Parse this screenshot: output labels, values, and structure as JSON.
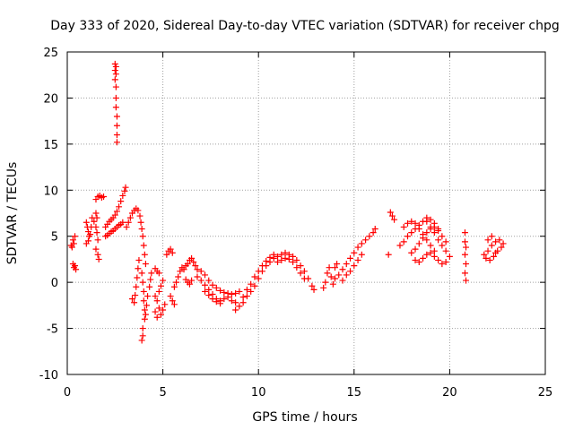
{
  "chart_data": {
    "type": "scatter",
    "title": "Day 333 of 2020, Sidereal Day-to-day VTEC variation (SDTVAR) for receiver chpg",
    "xlabel": "GPS time / hours",
    "ylabel": "SDTVAR / TECUs",
    "xlim": [
      0,
      25
    ],
    "ylim": [
      -10,
      25
    ],
    "xticks": [
      0,
      5,
      10,
      15,
      20,
      25
    ],
    "yticks": [
      -10,
      -5,
      0,
      5,
      10,
      15,
      20,
      25
    ],
    "grid": true,
    "marker": "+",
    "color": "#ff0000",
    "series": [
      {
        "name": "SDTVAR",
        "points": [
          [
            0.2,
            4.0
          ],
          [
            0.25,
            3.8
          ],
          [
            0.3,
            4.6
          ],
          [
            0.35,
            4.2
          ],
          [
            0.4,
            5.0
          ],
          [
            0.3,
            2.0
          ],
          [
            0.35,
            1.6
          ],
          [
            0.4,
            1.8
          ],
          [
            0.45,
            1.4
          ],
          [
            1.0,
            6.5
          ],
          [
            1.05,
            6.0
          ],
          [
            1.1,
            5.5
          ],
          [
            1.15,
            5.0
          ],
          [
            1.0,
            4.2
          ],
          [
            1.1,
            4.5
          ],
          [
            1.2,
            5.2
          ],
          [
            1.25,
            6.0
          ],
          [
            1.3,
            7.0
          ],
          [
            1.4,
            6.6
          ],
          [
            1.5,
            6.0
          ],
          [
            1.55,
            5.4
          ],
          [
            1.6,
            4.6
          ],
          [
            1.5,
            3.6
          ],
          [
            1.6,
            3.0
          ],
          [
            1.65,
            2.5
          ],
          [
            1.5,
            7.5
          ],
          [
            1.55,
            7.0
          ],
          [
            1.5,
            9.0
          ],
          [
            1.6,
            9.3
          ],
          [
            1.7,
            9.4
          ],
          [
            1.8,
            9.2
          ],
          [
            1.9,
            9.3
          ],
          [
            2.0,
            5.0
          ],
          [
            2.1,
            5.1
          ],
          [
            2.2,
            5.3
          ],
          [
            2.3,
            5.5
          ],
          [
            2.4,
            5.6
          ],
          [
            2.5,
            5.8
          ],
          [
            2.6,
            6.0
          ],
          [
            2.7,
            6.2
          ],
          [
            2.8,
            6.3
          ],
          [
            2.9,
            6.5
          ],
          [
            2.0,
            6.0
          ],
          [
            2.1,
            6.3
          ],
          [
            2.2,
            6.6
          ],
          [
            2.3,
            6.8
          ],
          [
            2.4,
            7.0
          ],
          [
            2.5,
            7.3
          ],
          [
            2.6,
            7.7
          ],
          [
            2.7,
            8.2
          ],
          [
            2.8,
            8.8
          ],
          [
            2.9,
            9.4
          ],
          [
            3.0,
            9.9
          ],
          [
            3.05,
            10.3
          ],
          [
            2.5,
            23.7
          ],
          [
            2.55,
            23.4
          ],
          [
            2.5,
            23.0
          ],
          [
            2.55,
            22.6
          ],
          [
            2.5,
            22.0
          ],
          [
            2.55,
            21.2
          ],
          [
            2.55,
            20.0
          ],
          [
            2.55,
            19.0
          ],
          [
            2.6,
            18.0
          ],
          [
            2.6,
            17.0
          ],
          [
            2.6,
            16.0
          ],
          [
            2.6,
            15.2
          ],
          [
            3.1,
            6.0
          ],
          [
            3.2,
            6.5
          ],
          [
            3.3,
            7.0
          ],
          [
            3.4,
            7.5
          ],
          [
            3.5,
            7.8
          ],
          [
            3.6,
            8.0
          ],
          [
            3.7,
            7.8
          ],
          [
            3.8,
            7.2
          ],
          [
            3.85,
            6.5
          ],
          [
            3.9,
            5.8
          ],
          [
            3.95,
            5.0
          ],
          [
            4.0,
            4.0
          ],
          [
            4.05,
            3.0
          ],
          [
            4.1,
            2.0
          ],
          [
            3.4,
            -1.8
          ],
          [
            3.5,
            -2.2
          ],
          [
            3.55,
            -1.4
          ],
          [
            3.6,
            -0.5
          ],
          [
            3.65,
            0.5
          ],
          [
            3.7,
            1.5
          ],
          [
            3.75,
            2.4
          ],
          [
            3.9,
            1.0
          ],
          [
            3.95,
            0.0
          ],
          [
            4.0,
            -1.0
          ],
          [
            4.0,
            -2.0
          ],
          [
            4.05,
            -3.0
          ],
          [
            4.05,
            -4.0
          ],
          [
            3.95,
            -5.0
          ],
          [
            3.95,
            -5.8
          ],
          [
            3.9,
            -6.3
          ],
          [
            4.1,
            -3.5
          ],
          [
            4.15,
            -2.5
          ],
          [
            4.2,
            -1.5
          ],
          [
            4.3,
            -0.5
          ],
          [
            4.35,
            0.3
          ],
          [
            4.4,
            1.0
          ],
          [
            4.6,
            -1.5
          ],
          [
            4.7,
            -2.0
          ],
          [
            4.8,
            -2.8
          ],
          [
            4.9,
            -3.5
          ],
          [
            4.6,
            -3.2
          ],
          [
            4.7,
            -3.8
          ],
          [
            5.0,
            -3.0
          ],
          [
            5.1,
            -2.4
          ],
          [
            4.8,
            -1.0
          ],
          [
            4.9,
            -0.4
          ],
          [
            5.0,
            0.2
          ],
          [
            4.6,
            1.5
          ],
          [
            4.7,
            1.2
          ],
          [
            4.8,
            1.0
          ],
          [
            5.2,
            3.0
          ],
          [
            5.3,
            3.4
          ],
          [
            5.4,
            3.6
          ],
          [
            5.5,
            3.2
          ],
          [
            5.4,
            -1.5
          ],
          [
            5.5,
            -2.0
          ],
          [
            5.6,
            -2.4
          ],
          [
            5.6,
            -0.5
          ],
          [
            5.7,
            0.0
          ],
          [
            5.8,
            0.6
          ],
          [
            5.9,
            1.2
          ],
          [
            6.0,
            1.6
          ],
          [
            6.1,
            1.4
          ],
          [
            6.2,
            1.8
          ],
          [
            6.3,
            2.0
          ],
          [
            6.4,
            2.4
          ],
          [
            6.5,
            2.6
          ],
          [
            6.6,
            2.2
          ],
          [
            6.7,
            1.8
          ],
          [
            6.8,
            1.4
          ],
          [
            6.2,
            0.3
          ],
          [
            6.3,
            0.0
          ],
          [
            6.4,
            -0.2
          ],
          [
            6.5,
            0.2
          ],
          [
            6.8,
            0.6
          ],
          [
            7.0,
            0.2
          ],
          [
            7.2,
            -0.3
          ],
          [
            7.4,
            -0.8
          ],
          [
            7.6,
            -1.3
          ],
          [
            7.8,
            -1.8
          ],
          [
            8.0,
            -2.0
          ],
          [
            8.2,
            -1.8
          ],
          [
            8.4,
            -1.6
          ],
          [
            7.0,
            1.2
          ],
          [
            7.2,
            0.8
          ],
          [
            7.4,
            0.2
          ],
          [
            7.6,
            -0.3
          ],
          [
            7.8,
            -0.6
          ],
          [
            8.0,
            -0.9
          ],
          [
            8.2,
            -1.1
          ],
          [
            8.4,
            -1.2
          ],
          [
            8.6,
            -1.3
          ],
          [
            8.8,
            -1.2
          ],
          [
            9.0,
            -1.0
          ],
          [
            7.2,
            -1.0
          ],
          [
            7.4,
            -1.4
          ],
          [
            7.6,
            -1.8
          ],
          [
            7.8,
            -2.1
          ],
          [
            8.0,
            -2.3
          ],
          [
            8.6,
            -2.0
          ],
          [
            8.8,
            -2.2
          ],
          [
            8.8,
            -3.0
          ],
          [
            9.0,
            -2.6
          ],
          [
            9.2,
            -2.2
          ],
          [
            9.4,
            -1.5
          ],
          [
            9.6,
            -1.0
          ],
          [
            9.8,
            -0.4
          ],
          [
            10.0,
            0.4
          ],
          [
            10.2,
            1.2
          ],
          [
            10.4,
            1.8
          ],
          [
            10.6,
            2.2
          ],
          [
            10.8,
            2.6
          ],
          [
            9.2,
            -1.6
          ],
          [
            9.4,
            -0.8
          ],
          [
            9.6,
            -0.2
          ],
          [
            9.8,
            0.6
          ],
          [
            10.0,
            1.2
          ],
          [
            10.2,
            1.8
          ],
          [
            10.4,
            2.3
          ],
          [
            10.6,
            2.7
          ],
          [
            10.8,
            3.0
          ],
          [
            11.0,
            2.8
          ],
          [
            11.2,
            3.0
          ],
          [
            11.4,
            3.2
          ],
          [
            11.6,
            3.0
          ],
          [
            11.8,
            2.8
          ],
          [
            12.0,
            2.4
          ],
          [
            12.2,
            1.8
          ],
          [
            12.4,
            1.2
          ],
          [
            12.6,
            0.4
          ],
          [
            12.8,
            -0.4
          ],
          [
            12.9,
            -0.8
          ],
          [
            11.0,
            2.2
          ],
          [
            11.2,
            2.4
          ],
          [
            11.4,
            2.6
          ],
          [
            11.6,
            2.5
          ],
          [
            11.8,
            2.2
          ],
          [
            12.0,
            1.6
          ],
          [
            12.2,
            1.0
          ],
          [
            12.4,
            0.4
          ],
          [
            13.4,
            -0.6
          ],
          [
            13.5,
            0.0
          ],
          [
            13.6,
            1.0
          ],
          [
            13.7,
            1.6
          ],
          [
            13.8,
            0.6
          ],
          [
            13.9,
            -0.2
          ],
          [
            14.0,
            0.4
          ],
          [
            14.2,
            0.8
          ],
          [
            14.4,
            1.4
          ],
          [
            14.6,
            2.0
          ],
          [
            14.8,
            2.6
          ],
          [
            15.0,
            3.2
          ],
          [
            15.2,
            3.8
          ],
          [
            15.4,
            4.2
          ],
          [
            15.6,
            4.6
          ],
          [
            15.8,
            5.0
          ],
          [
            16.0,
            5.4
          ],
          [
            16.1,
            5.8
          ],
          [
            14.4,
            0.2
          ],
          [
            14.6,
            0.8
          ],
          [
            14.8,
            1.2
          ],
          [
            15.0,
            1.8
          ],
          [
            15.2,
            2.4
          ],
          [
            15.4,
            3.0
          ],
          [
            14.0,
            1.6
          ],
          [
            14.1,
            2.0
          ],
          [
            16.8,
            3.0
          ],
          [
            16.9,
            7.6
          ],
          [
            17.0,
            7.2
          ],
          [
            17.1,
            6.8
          ],
          [
            17.4,
            4.0
          ],
          [
            17.6,
            4.4
          ],
          [
            17.8,
            5.0
          ],
          [
            18.0,
            5.4
          ],
          [
            18.2,
            5.8
          ],
          [
            18.4,
            6.2
          ],
          [
            18.6,
            6.6
          ],
          [
            18.8,
            7.0
          ],
          [
            19.0,
            6.8
          ],
          [
            19.2,
            6.4
          ],
          [
            19.4,
            5.8
          ],
          [
            19.6,
            5.0
          ],
          [
            19.8,
            4.4
          ],
          [
            17.6,
            6.0
          ],
          [
            17.8,
            6.4
          ],
          [
            18.0,
            6.6
          ],
          [
            18.2,
            6.4
          ],
          [
            18.4,
            5.8
          ],
          [
            18.6,
            5.2
          ],
          [
            18.8,
            4.6
          ],
          [
            19.0,
            4.0
          ],
          [
            19.2,
            3.4
          ],
          [
            18.0,
            3.2
          ],
          [
            18.2,
            3.6
          ],
          [
            18.4,
            4.2
          ],
          [
            18.6,
            4.8
          ],
          [
            18.8,
            5.4
          ],
          [
            19.0,
            5.8
          ],
          [
            19.2,
            6.0
          ],
          [
            19.4,
            5.6
          ],
          [
            18.2,
            2.4
          ],
          [
            18.4,
            2.2
          ],
          [
            18.6,
            2.6
          ],
          [
            18.8,
            3.0
          ],
          [
            19.0,
            3.2
          ],
          [
            19.2,
            2.8
          ],
          [
            19.4,
            2.4
          ],
          [
            19.6,
            2.0
          ],
          [
            19.8,
            2.2
          ],
          [
            20.0,
            2.8
          ],
          [
            18.8,
            6.6
          ],
          [
            19.0,
            6.0
          ],
          [
            19.2,
            5.4
          ],
          [
            19.4,
            4.6
          ],
          [
            19.6,
            4.0
          ],
          [
            19.8,
            3.4
          ],
          [
            20.8,
            5.4
          ],
          [
            20.8,
            4.4
          ],
          [
            20.85,
            3.8
          ],
          [
            20.8,
            3.0
          ],
          [
            20.85,
            2.0
          ],
          [
            20.8,
            1.0
          ],
          [
            20.85,
            0.2
          ],
          [
            21.8,
            3.0
          ],
          [
            22.0,
            3.4
          ],
          [
            22.2,
            4.0
          ],
          [
            22.4,
            4.4
          ],
          [
            22.6,
            4.6
          ],
          [
            22.8,
            4.2
          ],
          [
            21.9,
            2.6
          ],
          [
            22.1,
            2.4
          ],
          [
            22.3,
            2.8
          ],
          [
            22.5,
            3.4
          ],
          [
            22.7,
            3.8
          ],
          [
            22.0,
            4.6
          ],
          [
            22.2,
            5.0
          ],
          [
            22.4,
            3.2
          ]
        ]
      }
    ]
  }
}
